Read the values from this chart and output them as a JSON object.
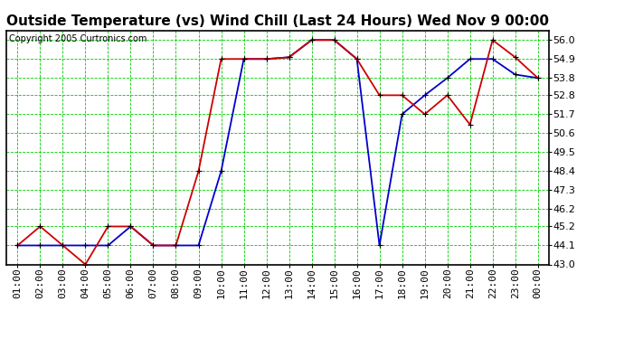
{
  "title": "Outside Temperature (vs) Wind Chill (Last 24 Hours) Wed Nov 9 00:00",
  "copyright": "Copyright 2005 Curtronics.com",
  "x_labels": [
    "01:00",
    "02:00",
    "03:00",
    "04:00",
    "05:00",
    "06:00",
    "07:00",
    "08:00",
    "09:00",
    "10:00",
    "11:00",
    "12:00",
    "13:00",
    "14:00",
    "15:00",
    "16:00",
    "17:00",
    "18:00",
    "19:00",
    "20:00",
    "21:00",
    "22:00",
    "23:00",
    "00:00"
  ],
  "temp_data": [
    44.1,
    44.1,
    44.1,
    44.1,
    44.1,
    45.2,
    44.1,
    44.1,
    44.1,
    48.4,
    54.9,
    54.9,
    55.0,
    56.0,
    56.0,
    54.9,
    44.1,
    51.7,
    52.8,
    53.8,
    54.9,
    54.9,
    54.0,
    53.8
  ],
  "windchill_data": [
    44.1,
    45.2,
    44.1,
    43.0,
    45.2,
    45.2,
    44.1,
    44.1,
    48.4,
    54.9,
    54.9,
    54.9,
    55.0,
    56.0,
    56.0,
    54.9,
    52.8,
    52.8,
    51.7,
    52.8,
    51.1,
    56.0,
    55.0,
    53.8
  ],
  "ylim": [
    43.0,
    56.55
  ],
  "yticks": [
    43.0,
    44.1,
    45.2,
    46.2,
    47.3,
    48.4,
    49.5,
    50.6,
    51.7,
    52.8,
    53.8,
    54.9,
    56.0
  ],
  "temp_color": "#0000cc",
  "windchill_color": "#cc0000",
  "bg_color": "#ffffff",
  "grid_color": "#00cc00",
  "title_fontsize": 11,
  "tick_fontsize": 8,
  "copyright_fontsize": 7
}
